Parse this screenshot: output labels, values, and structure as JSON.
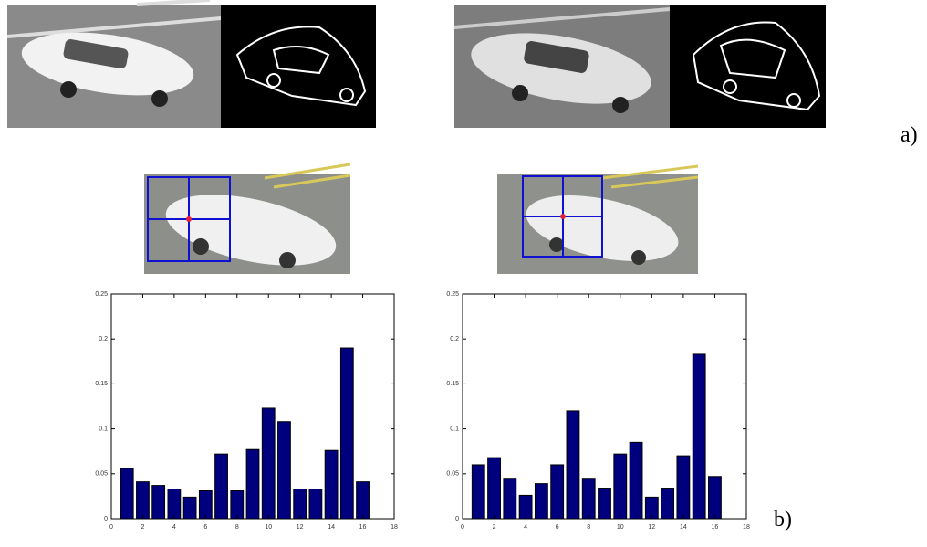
{
  "panel_labels": [
    "a)",
    "b)"
  ],
  "chart_data": [
    {
      "type": "bar",
      "x": [
        1,
        2,
        3,
        4,
        5,
        6,
        7,
        8,
        9,
        10,
        11,
        12,
        13,
        14,
        15,
        16
      ],
      "values": [
        0.056,
        0.041,
        0.037,
        0.033,
        0.024,
        0.031,
        0.072,
        0.031,
        0.077,
        0.123,
        0.108,
        0.033,
        0.033,
        0.076,
        0.19,
        0.041
      ],
      "color": "#00007f",
      "xlim": [
        0,
        18
      ],
      "xticks": [
        0,
        2,
        4,
        6,
        8,
        10,
        12,
        14,
        16,
        18
      ],
      "ylim": [
        0,
        0.25
      ],
      "yticks": [
        0,
        0.05,
        0.1,
        0.15,
        0.2,
        0.25
      ]
    },
    {
      "type": "bar",
      "x": [
        1,
        2,
        3,
        4,
        5,
        6,
        7,
        8,
        9,
        10,
        11,
        12,
        13,
        14,
        15,
        16
      ],
      "values": [
        0.06,
        0.068,
        0.045,
        0.026,
        0.039,
        0.06,
        0.12,
        0.045,
        0.034,
        0.072,
        0.085,
        0.024,
        0.034,
        0.07,
        0.183,
        0.047
      ],
      "color": "#00007f",
      "xlim": [
        0,
        18
      ],
      "xticks": [
        0,
        2,
        4,
        6,
        8,
        10,
        12,
        14,
        16,
        18
      ],
      "ylim": [
        0,
        0.25
      ],
      "yticks": [
        0,
        0.05,
        0.1,
        0.15,
        0.2,
        0.25
      ]
    }
  ]
}
